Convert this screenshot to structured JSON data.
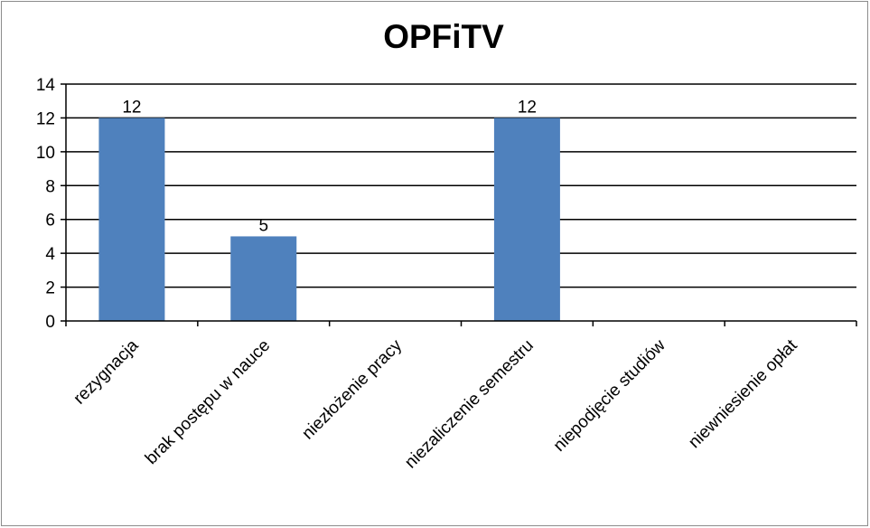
{
  "chart_data": {
    "type": "bar",
    "title": "OPFiTV",
    "categories": [
      "rezygnacja",
      "brak postępu w nauce",
      "niezłożenie pracy",
      "niezaliczenie semestru",
      "niepodjęcie studiów",
      "niewniesienie opłat"
    ],
    "values": [
      12,
      5,
      0,
      12,
      0,
      0
    ],
    "data_labels": [
      "12",
      "5",
      "",
      "12",
      "",
      ""
    ],
    "ylim": [
      0,
      14
    ],
    "yticks": [
      0,
      2,
      4,
      6,
      8,
      10,
      12,
      14
    ],
    "grid": true,
    "legend": "none",
    "bar_color": "#4f81bd"
  }
}
